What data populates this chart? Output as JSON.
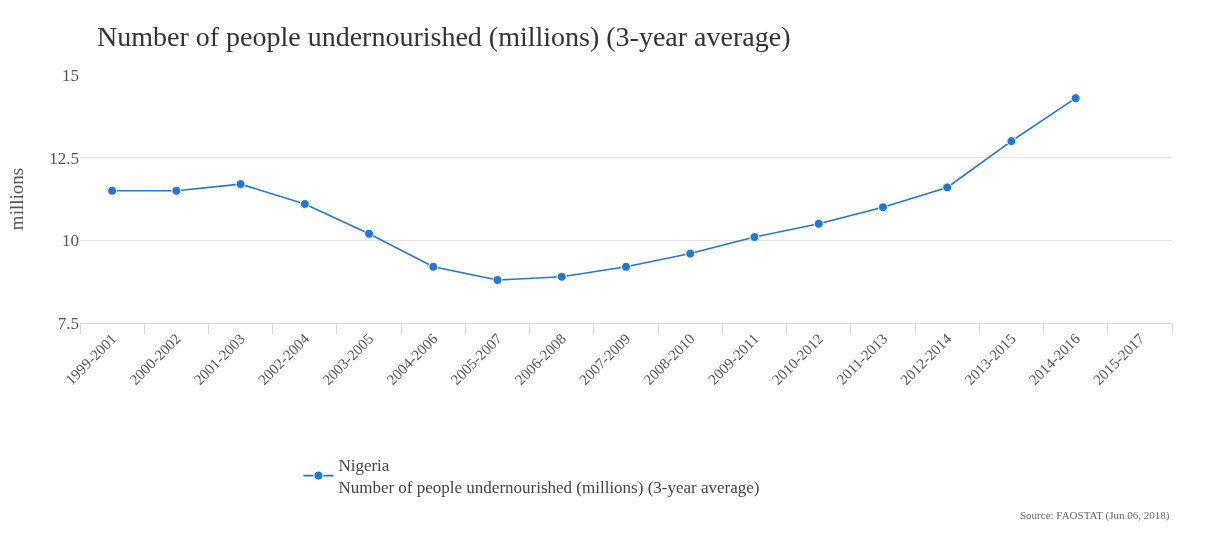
{
  "chart_data": {
    "type": "line",
    "title": "Number of people undernourished (millions) (3-year average)",
    "ylabel": "millions",
    "categories": [
      "1999-2001",
      "2000-2002",
      "2001-2003",
      "2002-2004",
      "2003-2005",
      "2004-2006",
      "2005-2007",
      "2006-2008",
      "2007-2009",
      "2008-2010",
      "2009-2011",
      "2010-2012",
      "2011-2013",
      "2012-2014",
      "2013-2015",
      "2014-2016",
      "2015-2017"
    ],
    "series": [
      {
        "name": "Nigeria\nNumber of people undernourished (millions) (3-year average)",
        "color": "#1f78d1",
        "values": [
          11.5,
          11.5,
          11.7,
          11.1,
          10.2,
          9.2,
          8.8,
          8.9,
          9.2,
          9.6,
          10.1,
          10.5,
          11.0,
          11.6,
          13.0,
          14.3,
          null
        ]
      }
    ],
    "ylim": [
      7.5,
      15
    ],
    "yticks": [
      7.5,
      10,
      12.5,
      15
    ],
    "grid": "y",
    "legend": "bottom",
    "marker": "circle",
    "line_style": "solid",
    "annotations": [
      "Source: FAOSTAT (Jun 06, 2018)"
    ]
  }
}
